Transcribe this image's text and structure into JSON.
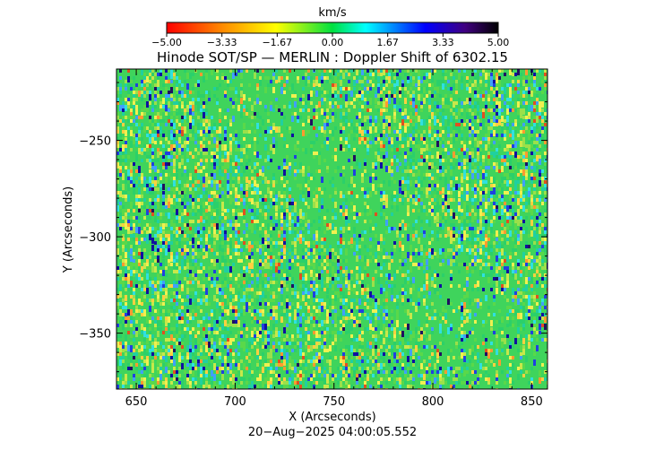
{
  "chart_data": {
    "type": "heatmap",
    "title": "Hinode SOT/SP — MERLIN : Doppler Shift of 6302.15",
    "colorbar": {
      "unit": "km/s",
      "ticks": [
        "−5.00",
        "−3.33",
        "−1.67",
        "0.00",
        "1.67",
        "3.33",
        "5.00"
      ],
      "range": [
        -5.0,
        5.0
      ],
      "colormap": "rainbow (red → yellow → green → cyan → blue → black)"
    },
    "xlabel": "X (Arcseconds)",
    "ylabel": "Y (Arcseconds)",
    "xlim": [
      640,
      858
    ],
    "ylim": [
      -379,
      -213
    ],
    "x_ticks": [
      650,
      700,
      750,
      800,
      850
    ],
    "y_ticks": [
      -250,
      -300,
      -350
    ],
    "timestamp": "20−Aug−2025 04:00:05.552",
    "dominant_color": "#3fd45c",
    "colors": [
      "#ff0000",
      "#ff8c00",
      "#ffff00",
      "#00e040",
      "#00ffff",
      "#0000ff",
      "#000000"
    ]
  }
}
